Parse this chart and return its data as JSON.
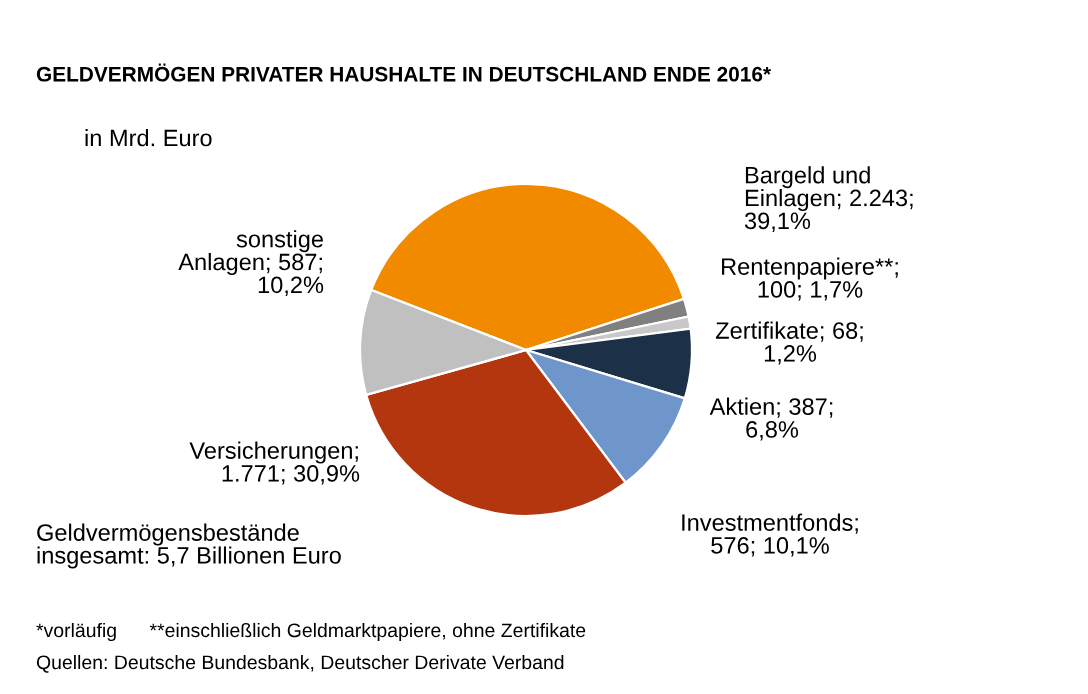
{
  "chart_data": {
    "type": "pie",
    "title": "GELDVERMÖGEN PRIVATER HAUSHALTE IN DEUTSCHLAND ENDE 2016*",
    "subtitle": "in Mrd. Euro",
    "categories": [
      "Bargeld und\nEinlagen",
      "Rentenpapiere**",
      "Zertifikate",
      "Aktien",
      "Investmentfonds",
      "Versicherungen",
      "sonstige\nAnlagen"
    ],
    "values": [
      2243,
      100,
      68,
      387,
      576,
      1771,
      587
    ],
    "value_labels": [
      "; 2.243;\n39,1%",
      ";\n100; 1,7%",
      "; 68;\n1,2%",
      "; 387;\n6,8%",
      ";\n576; 10,1%",
      ";\n1.771; 30,9%",
      "; 587;\n10,2%"
    ],
    "colors": [
      "#f28a00",
      "#808080",
      "#c8c8c8",
      "#1c3048",
      "#6f96cb",
      "#b3360e",
      "#c0c0c0"
    ],
    "annotations": [
      "Geldvermögensbestände\ninsgesamt: 5,7 Billionen Euro",
      "*vorläufig      **einschließlich Geldmarktpapiere, ohne Zertifikate",
      "Quellen: Deutsche Bundesbank, Deutscher Derivate Verband"
    ]
  }
}
